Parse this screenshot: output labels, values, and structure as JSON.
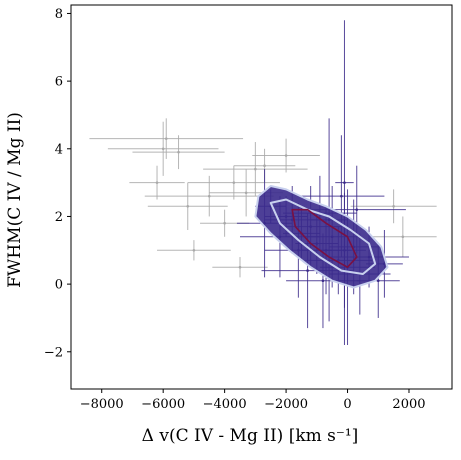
{
  "chart_data": {
    "type": "scatter",
    "title": "",
    "xlabel": "Δ v(C IV - Mg II) [km s⁻¹]",
    "ylabel": "FWHM(C IV / Mg II)",
    "xlim": [
      -9000,
      3400
    ],
    "ylim": [
      -3.1,
      8.25
    ],
    "xticks": [
      -8000,
      -6000,
      -4000,
      -2000,
      0,
      2000
    ],
    "xtick_labels": [
      "−8000",
      "−6000",
      "−4000",
      "−2000",
      "0",
      "2000"
    ],
    "yticks": [
      -2,
      0,
      2,
      4,
      6,
      8
    ],
    "ytick_labels": [
      "−2",
      "0",
      "2",
      "4",
      "6",
      "8"
    ],
    "grid": false,
    "colors": {
      "main_sample": "#3b2a8a",
      "outlier_sample": "#a9a9a9",
      "contour_fill": "#3a2a8c",
      "contour_outer": "#c8d0ee",
      "contour_inner": "#7a1042"
    },
    "series": [
      {
        "color": "#3b2a8a",
        "points": [
          {
            "x": -2500,
            "y": 2.3,
            "xerr": 500,
            "yerr": 0.5
          },
          {
            "x": -2000,
            "y": 2.0,
            "xerr": 700,
            "yerr": 0.6
          },
          {
            "x": -1800,
            "y": 1.9,
            "xerr": 900,
            "yerr": 1.0
          },
          {
            "x": -1500,
            "y": 1.5,
            "xerr": 600,
            "yerr": 0.8
          },
          {
            "x": -1200,
            "y": 1.7,
            "xerr": 1000,
            "yerr": 1.2
          },
          {
            "x": -1000,
            "y": 1.2,
            "xerr": 700,
            "yerr": 0.9
          },
          {
            "x": -900,
            "y": 2.1,
            "xerr": 1200,
            "yerr": 1.1
          },
          {
            "x": -700,
            "y": 1.0,
            "xerr": 800,
            "yerr": 1.3
          },
          {
            "x": -500,
            "y": 1.4,
            "xerr": 900,
            "yerr": 1.5
          },
          {
            "x": -300,
            "y": 0.7,
            "xerr": 1100,
            "yerr": 1.0
          },
          {
            "x": -100,
            "y": 1.0,
            "xerr": 700,
            "yerr": 1.7
          },
          {
            "x": 0,
            "y": 0.5,
            "xerr": 900,
            "yerr": 2.3
          },
          {
            "x": 200,
            "y": 1.1,
            "xerr": 800,
            "yerr": 1.4
          },
          {
            "x": 400,
            "y": 0.3,
            "xerr": 1000,
            "yerr": 1.2
          },
          {
            "x": 700,
            "y": 0.8,
            "xerr": 1300,
            "yerr": 0.9
          },
          {
            "x": 1000,
            "y": 0.1,
            "xerr": 700,
            "yerr": 1.1
          },
          {
            "x": -600,
            "y": 1.9,
            "xerr": 600,
            "yerr": 3.0
          },
          {
            "x": -200,
            "y": 2.6,
            "xerr": 1400,
            "yerr": 1.8
          },
          {
            "x": -1600,
            "y": 1.0,
            "xerr": 1100,
            "yerr": 1.4
          },
          {
            "x": -2200,
            "y": 1.4,
            "xerr": 1300,
            "yerr": 1.2
          },
          {
            "x": -100,
            "y": 3.0,
            "xerr": 300,
            "yerr": 4.8
          },
          {
            "x": -2700,
            "y": 1.8,
            "xerr": 900,
            "yerr": 1.6
          },
          {
            "x": 1200,
            "y": 0.6,
            "xerr": 600,
            "yerr": 1.0
          },
          {
            "x": -1300,
            "y": 0.4,
            "xerr": 1500,
            "yerr": 1.7
          },
          {
            "x": 300,
            "y": 2.2,
            "xerr": 1600,
            "yerr": 1.3
          },
          {
            "x": -800,
            "y": 0.1,
            "xerr": 1200,
            "yerr": 1.4
          }
        ]
      },
      {
        "color": "#a9a9a9",
        "points": [
          {
            "x": -5900,
            "y": 4.3,
            "xerr": 2500,
            "yerr": 0.6
          },
          {
            "x": -6000,
            "y": 4.0,
            "xerr": 1800,
            "yerr": 0.8
          },
          {
            "x": -5500,
            "y": 3.9,
            "xerr": 1500,
            "yerr": 0.5
          },
          {
            "x": -5200,
            "y": 2.3,
            "xerr": 1300,
            "yerr": 0.7
          },
          {
            "x": -5000,
            "y": 1.0,
            "xerr": 1200,
            "yerr": 0.3
          },
          {
            "x": -4500,
            "y": 2.6,
            "xerr": 2100,
            "yerr": 0.6
          },
          {
            "x": -3700,
            "y": 3.0,
            "xerr": 1500,
            "yerr": 0.5
          },
          {
            "x": -3300,
            "y": 2.7,
            "xerr": 1200,
            "yerr": 0.7
          },
          {
            "x": -3000,
            "y": 3.4,
            "xerr": 1700,
            "yerr": 0.8
          },
          {
            "x": -2700,
            "y": 3.5,
            "xerr": 1000,
            "yerr": 0.5
          },
          {
            "x": -4000,
            "y": 1.8,
            "xerr": 800,
            "yerr": 0.4
          },
          {
            "x": -6200,
            "y": 3.0,
            "xerr": 900,
            "yerr": 0.5
          },
          {
            "x": 1800,
            "y": 1.4,
            "xerr": 1100,
            "yerr": 0.6
          },
          {
            "x": 1500,
            "y": 2.3,
            "xerr": 1400,
            "yerr": 0.5
          },
          {
            "x": -3500,
            "y": 0.5,
            "xerr": 900,
            "yerr": 0.3
          },
          {
            "x": -2000,
            "y": 3.8,
            "xerr": 1100,
            "yerr": 0.5
          }
        ]
      }
    ],
    "density_contours": [
      {
        "level": "outer",
        "color": "#c8d0ee",
        "fill": "#3a2a8c",
        "points": [
          [
            -2900,
            2.6
          ],
          [
            -2500,
            2.9
          ],
          [
            -2000,
            2.8
          ],
          [
            -1300,
            2.5
          ],
          [
            -700,
            2.3
          ],
          [
            0,
            2.0
          ],
          [
            600,
            1.6
          ],
          [
            1100,
            1.1
          ],
          [
            1300,
            0.5
          ],
          [
            900,
            0.1
          ],
          [
            200,
            -0.1
          ],
          [
            -500,
            0.1
          ],
          [
            -1200,
            0.5
          ],
          [
            -1900,
            1.0
          ],
          [
            -2500,
            1.5
          ],
          [
            -3000,
            2.0
          ]
        ]
      },
      {
        "level": "middle",
        "color": "#c8d0ee",
        "points": [
          [
            -2500,
            2.4
          ],
          [
            -2000,
            2.5
          ],
          [
            -1300,
            2.2
          ],
          [
            -600,
            2.0
          ],
          [
            100,
            1.6
          ],
          [
            700,
            1.2
          ],
          [
            900,
            0.6
          ],
          [
            500,
            0.3
          ],
          [
            -200,
            0.4
          ],
          [
            -900,
            0.8
          ],
          [
            -1600,
            1.3
          ],
          [
            -2200,
            1.8
          ]
        ]
      },
      {
        "level": "inner",
        "color": "#7a1042",
        "points": [
          [
            -1800,
            2.2
          ],
          [
            -1300,
            2.2
          ],
          [
            -700,
            1.8
          ],
          [
            0,
            1.4
          ],
          [
            300,
            0.8
          ],
          [
            0,
            0.5
          ],
          [
            -600,
            0.8
          ],
          [
            -1200,
            1.2
          ],
          [
            -1700,
            1.7
          ]
        ]
      }
    ]
  }
}
